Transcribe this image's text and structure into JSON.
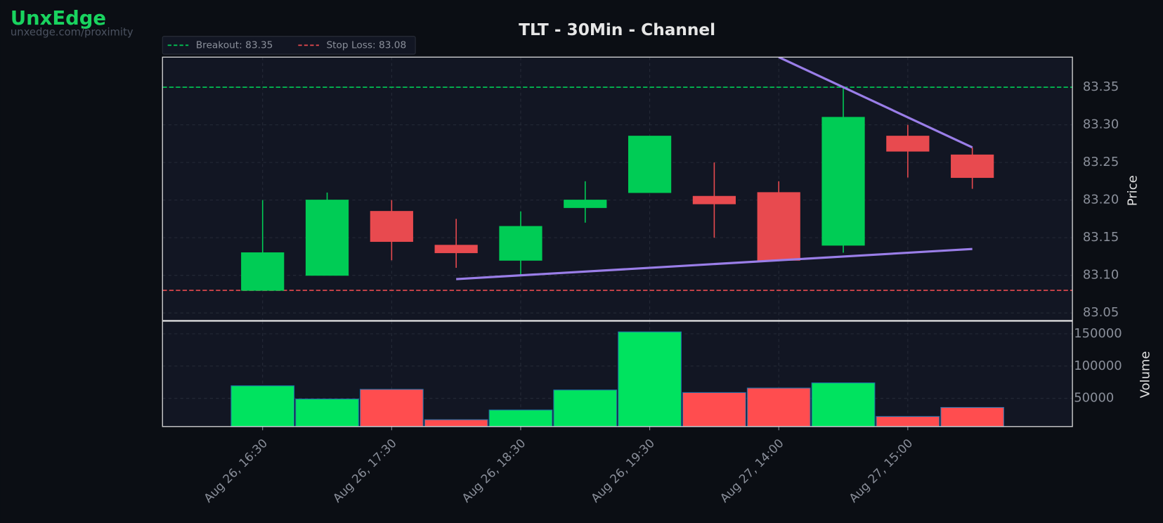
{
  "brand": {
    "name": "UnxEdge",
    "url": "unxedge.com/proximity"
  },
  "chart_data": {
    "type": "candlestick",
    "title": "TLT - 30Min - Channel",
    "categories": [
      "Aug 26, 16:30",
      null,
      "Aug 26, 17:30",
      null,
      "Aug 26, 18:30",
      null,
      "Aug 26, 19:30",
      null,
      "Aug 27, 14:00",
      null,
      "Aug 27, 15:00",
      null
    ],
    "open": [
      83.08,
      83.1,
      83.185,
      83.14,
      83.12,
      83.19,
      83.21,
      83.205,
      83.21,
      83.14,
      83.285,
      83.26
    ],
    "high": [
      83.2,
      83.21,
      83.2,
      83.175,
      83.185,
      83.225,
      83.285,
      83.25,
      83.225,
      83.35,
      83.3,
      83.27
    ],
    "low": [
      83.08,
      83.1,
      83.12,
      83.11,
      83.1,
      83.17,
      83.21,
      83.15,
      83.12,
      83.13,
      83.23,
      83.215
    ],
    "close": [
      83.13,
      83.2,
      83.145,
      83.13,
      83.165,
      83.2,
      83.285,
      83.195,
      83.12,
      83.31,
      83.265,
      83.23
    ],
    "up_color": "#00cc55",
    "down_color": "#e84a4f",
    "ylabel": "Price",
    "ylim": [
      83.04,
      83.39
    ],
    "yticks": [
      83.05,
      {
        "value": 83.1,
        "label": "83.10"
      },
      83.15,
      {
        "value": 83.2,
        "label": "83.20"
      },
      83.25,
      {
        "value": 83.3,
        "label": "83.30"
      },
      83.35
    ],
    "grid": true,
    "hlines": [
      {
        "label": "Breakout: 83.35",
        "value": 83.35,
        "color": "#00cc55"
      },
      {
        "label": "Stop Loss: 83.08",
        "value": 83.08,
        "color": "#e84a4f"
      }
    ],
    "trendlines": [
      {
        "x": [
          8,
          11
        ],
        "y": [
          83.39,
          83.27
        ],
        "color": "#9a7ee8"
      },
      {
        "x": [
          3,
          11
        ],
        "y": [
          83.095,
          83.135
        ],
        "color": "#9a7ee8"
      }
    ],
    "volume": {
      "ylabel": "Volume",
      "values": [
        69500,
        49000,
        64000,
        17000,
        32000,
        63000,
        153000,
        59000,
        66000,
        74000,
        22000,
        36000
      ],
      "ylim": [
        6300,
        169500
      ],
      "yticks": [
        50000,
        100000,
        150000
      ],
      "up_color": "#00e35f",
      "down_color": "#ff4d4f"
    }
  }
}
